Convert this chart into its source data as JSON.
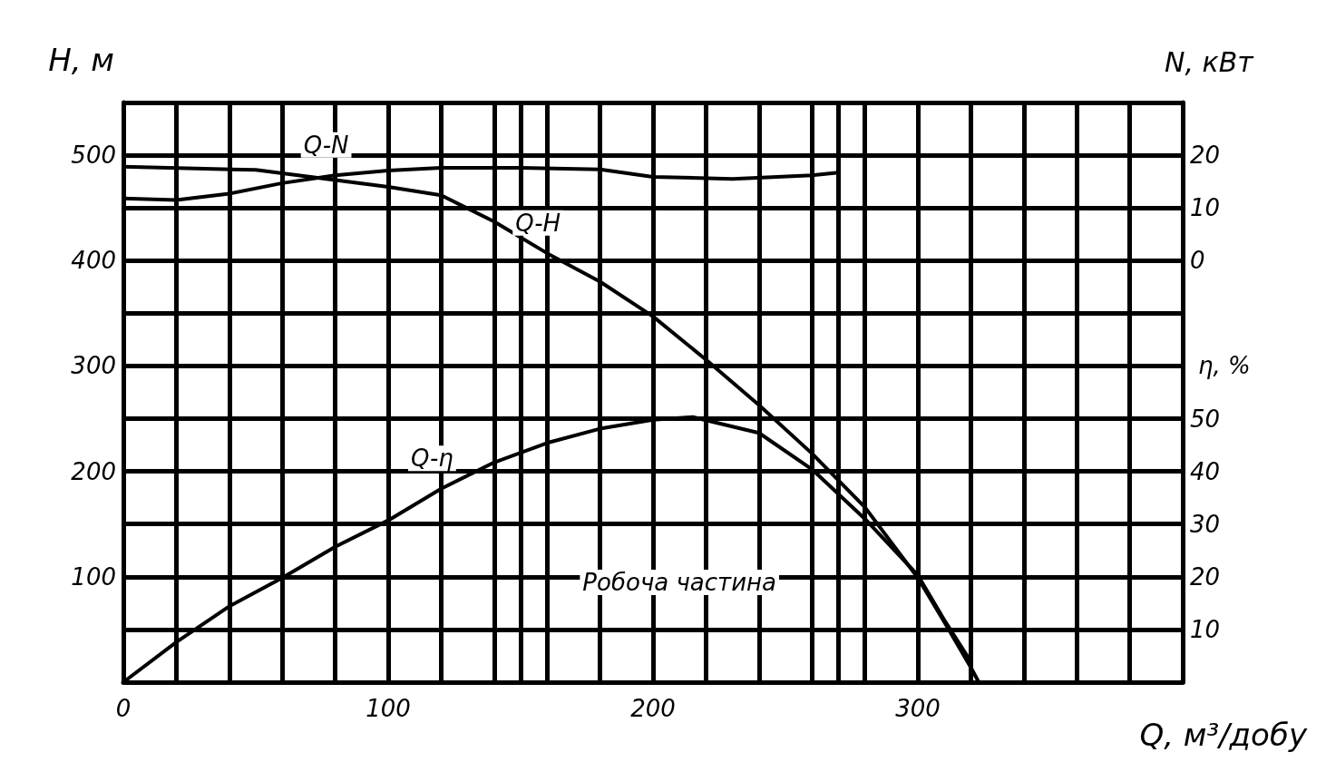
{
  "chart_data": {
    "type": "line",
    "xlabel": "Q, м³/добу",
    "ylabel": "H, м",
    "y2label": "N, кВт",
    "y3label": "η, %",
    "xlim": [
      0,
      400
    ],
    "xticks": [
      0,
      {
        "value": 20,
        "label": null
      },
      {
        "value": 40,
        "label": null
      },
      {
        "value": 60,
        "label": null
      },
      {
        "value": 80,
        "label": null
      },
      100,
      {
        "value": 120,
        "label": null
      },
      {
        "value": 140,
        "label": null
      },
      {
        "value": 160,
        "label": null
      },
      {
        "value": 180,
        "label": null
      },
      200,
      {
        "value": 220,
        "label": null
      },
      {
        "value": 240,
        "label": null
      },
      {
        "value": 260,
        "label": null
      },
      {
        "value": 280,
        "label": null
      },
      300,
      {
        "value": 320,
        "label": null
      },
      {
        "value": 340,
        "label": null
      },
      {
        "value": 360,
        "label": null
      },
      {
        "value": 380,
        "label": null
      },
      {
        "value": 400,
        "label": null
      }
    ],
    "ylim": [
      0,
      550
    ],
    "yticks": [
      {
        "value": 0,
        "label": null
      },
      {
        "value": 50,
        "label": null
      },
      100,
      {
        "value": 150,
        "label": null
      },
      200,
      {
        "value": 250,
        "label": null
      },
      300,
      {
        "value": 350,
        "label": null
      },
      400,
      {
        "value": 450,
        "label": null
      },
      500,
      {
        "value": 550,
        "label": null
      }
    ],
    "y2lim": [
      -80,
      30
    ],
    "y2ticks": [
      0,
      10,
      20
    ],
    "y3lim": [
      0,
      110
    ],
    "y3ticks": [
      10,
      20,
      30,
      40,
      50
    ],
    "grid": true,
    "marker": "none",
    "line_style": "solid",
    "series": [
      {
        "name": "Q-H",
        "color": "#000000",
        "x": [
          0,
          50,
          100,
          120,
          140,
          160,
          180,
          200,
          220,
          240,
          260,
          280,
          300,
          310,
          320,
          323
        ],
        "values": [
          489,
          486,
          470,
          462,
          437,
          407,
          380,
          347,
          306,
          263,
          217,
          166,
          99,
          57,
          14,
          0
        ]
      },
      {
        "name": "Q-N",
        "color": "#000000",
        "axis": "y2",
        "x": [
          0,
          20,
          40,
          60,
          80,
          100,
          120,
          150,
          180,
          200,
          230,
          260,
          270
        ],
        "values": [
          11.8,
          11.5,
          12.7,
          14.7,
          16.2,
          17.1,
          17.6,
          17.6,
          17.3,
          15.9,
          15.5,
          16.2,
          16.7
        ]
      },
      {
        "name": "Q-η",
        "color": "#000000",
        "axis": "y3",
        "x": [
          0,
          20,
          40,
          60,
          80,
          100,
          120,
          140,
          160,
          180,
          200,
          215,
          230,
          240,
          260,
          280,
          300,
          310,
          320
        ],
        "values": [
          0,
          7.6,
          14.4,
          19.8,
          25.7,
          30.7,
          36.7,
          41.7,
          45.4,
          48.1,
          49.8,
          50.3,
          48.5,
          47.3,
          40.4,
          31,
          20.3,
          11.8,
          3.9
        ]
      }
    ],
    "ref_lines": [
      {
        "axis": "x",
        "value": 150
      },
      {
        "axis": "x",
        "value": 270
      }
    ],
    "annotations": [
      "Робоча частина"
    ]
  }
}
